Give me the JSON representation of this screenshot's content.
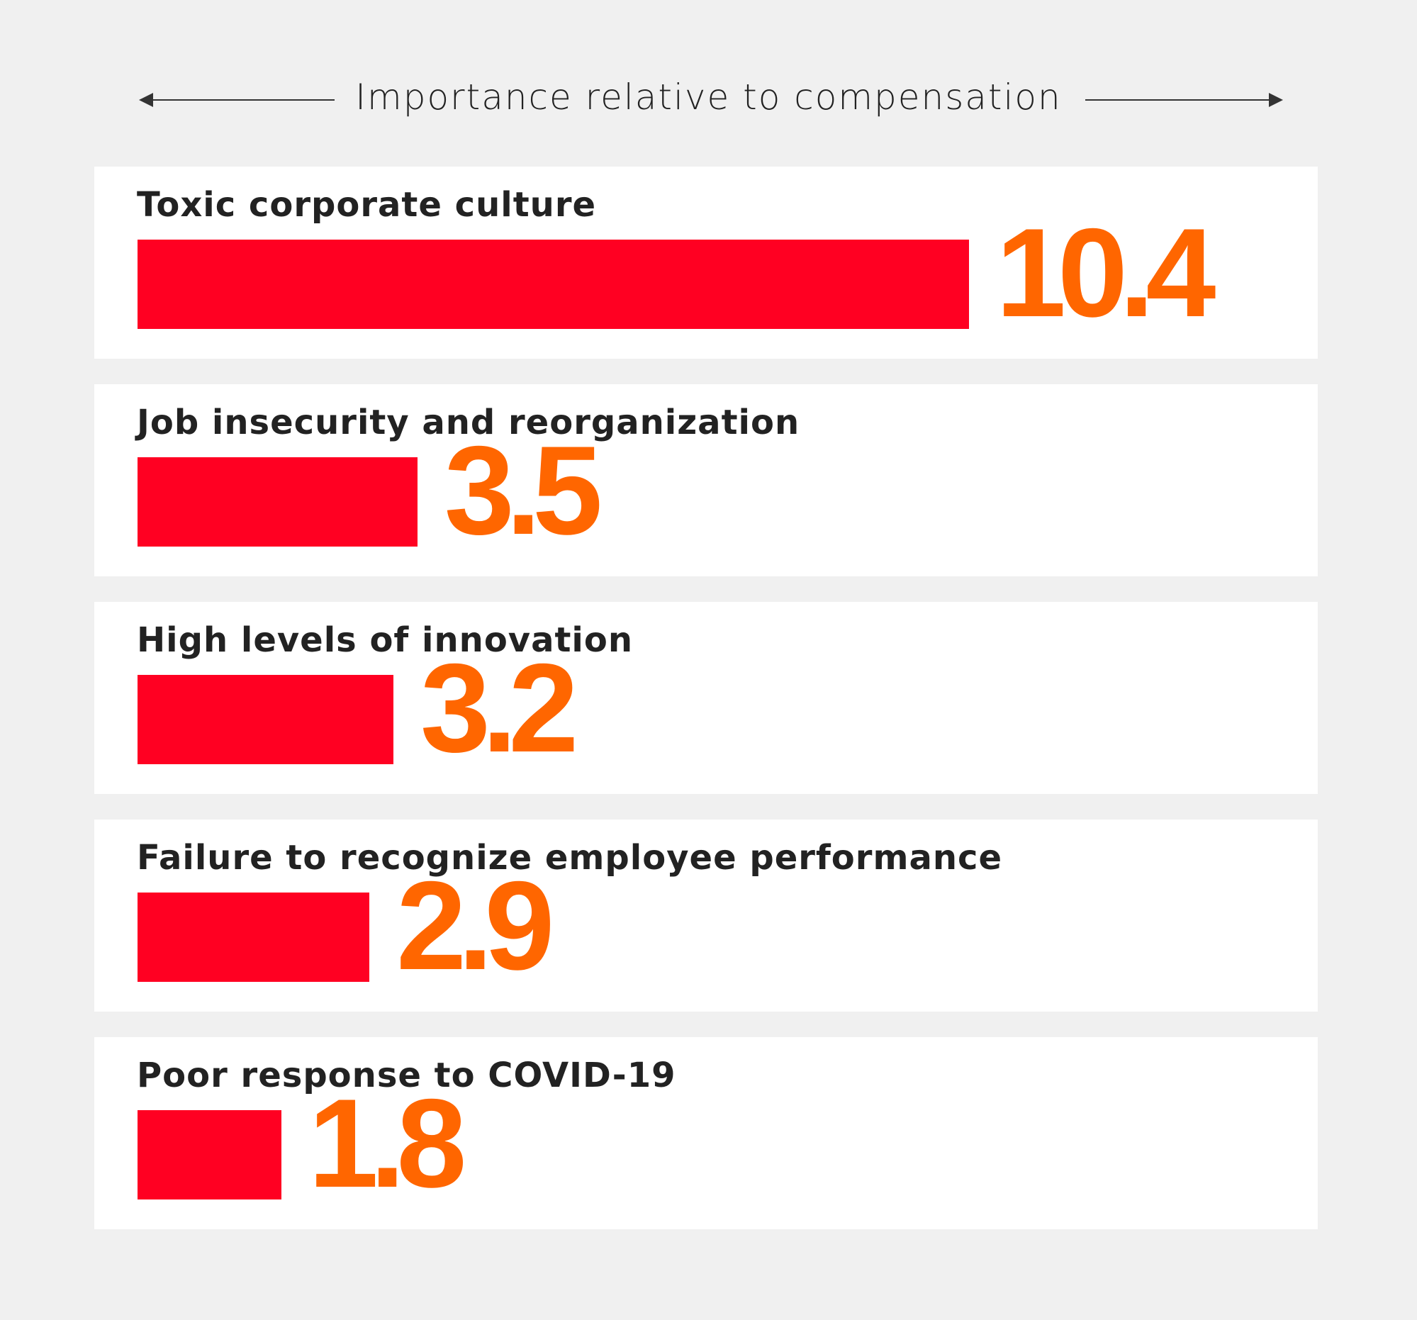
{
  "chart_data": {
    "type": "bar",
    "orientation": "horizontal",
    "title": "Importance relative to compensation",
    "categories": [
      "Toxic corporate culture",
      "Job insecurity and reorganization",
      "High levels of innovation",
      "Failure to recognize employee performance",
      "Poor response to COVID-19"
    ],
    "values": [
      10.4,
      3.5,
      3.2,
      2.9,
      1.8
    ],
    "value_labels": [
      "10.4",
      "3.5",
      "3.2",
      "2.9",
      "1.8"
    ],
    "xlim": [
      0,
      10.4
    ],
    "grid": false,
    "bar_color": "#ff0022",
    "value_color": "#ff6600",
    "background": "#f0f0f0",
    "panel_color": "#ffffff"
  }
}
